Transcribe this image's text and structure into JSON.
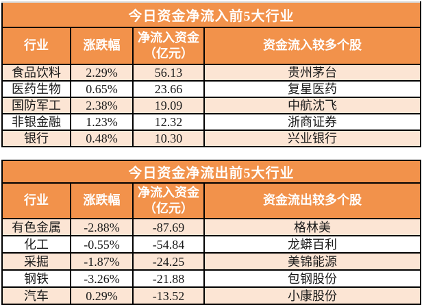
{
  "colors": {
    "orange": "#f2924b",
    "peach": "#fce5d4",
    "border": "#000000",
    "header_text": "#ffffff",
    "data_text": "#1a1a1a"
  },
  "chart_data": [
    {
      "type": "table",
      "title": "今日资金净流入前5大行业",
      "columns": [
        "行业",
        "涨跌幅",
        "净流入资金\n（亿元）",
        "资金流入较多个股"
      ],
      "rows": [
        [
          "食品饮料",
          "2.29%",
          "56.13",
          "贵州茅台"
        ],
        [
          "医药生物",
          "0.65%",
          "23.66",
          "复星医药"
        ],
        [
          "国防军工",
          "2.38%",
          "19.09",
          "中航沈飞"
        ],
        [
          "非银金融",
          "1.23%",
          "12.32",
          "浙商证券"
        ],
        [
          "银行",
          "0.48%",
          "10.30",
          "兴业银行"
        ]
      ]
    },
    {
      "type": "table",
      "title": "今日资金净流出前5大行业",
      "columns": [
        "行业",
        "涨跌幅",
        "净流入资金\n（亿元）",
        "资金流出较多个股"
      ],
      "rows": [
        [
          "有色金属",
          "-2.88%",
          "-87.69",
          "格林美"
        ],
        [
          "化工",
          "-0.55%",
          "-54.84",
          "龙蟒百利"
        ],
        [
          "采掘",
          "-1.87%",
          "-24.25",
          "美锦能源"
        ],
        [
          "钢铁",
          "-3.26%",
          "-21.88",
          "包钢股份"
        ],
        [
          "汽车",
          "0.29%",
          "-13.52",
          "小康股份"
        ]
      ]
    }
  ]
}
